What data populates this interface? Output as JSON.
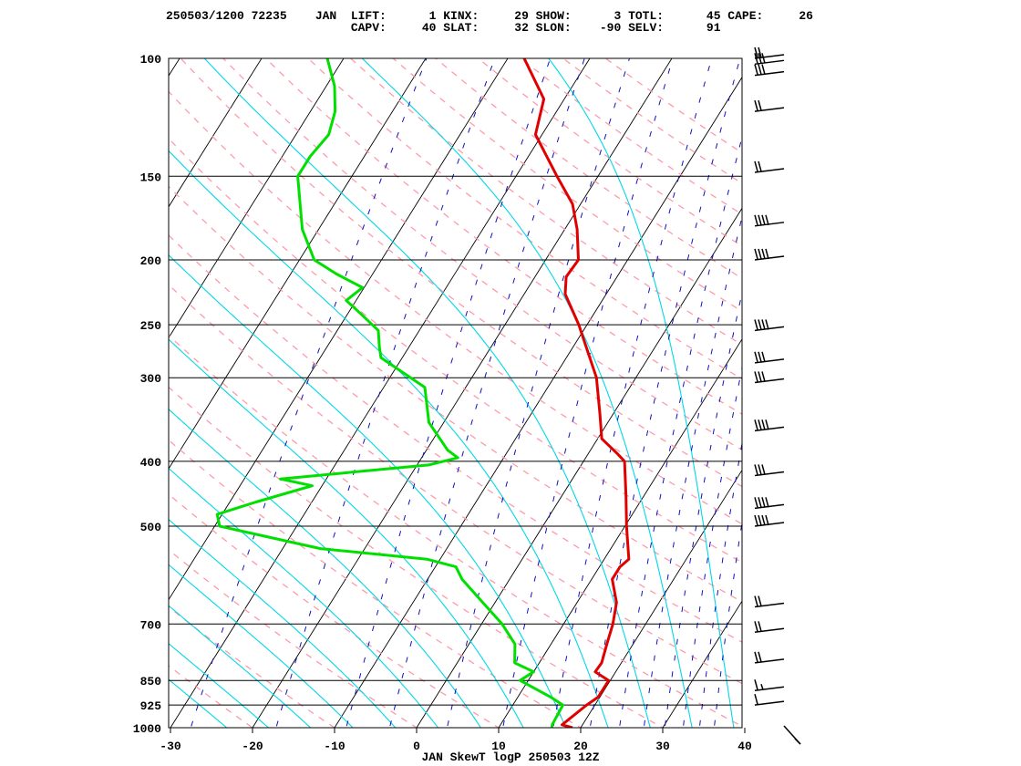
{
  "header": {
    "line1": "250503/1200 72235    JAN  LIFT:      1 KINX:     29 SHOW:      3 TOTL:      45 CAPE:     26",
    "line2": "                          CAPV:     40 SLAT:     32 SLON:    -90 SELV:      91"
  },
  "caption": "JAN SkewT logP 250503 12Z",
  "colors": {
    "temperature": "#e00000",
    "dewpoint": "#00e000",
    "isotherm": "#000000",
    "dry_adiabat": "#ff9aaa",
    "moist_adiabat": "#00d8e8",
    "mixing_ratio": "#1010c0",
    "isobar": "#000000"
  },
  "chart_data": {
    "type": "skewt-logp",
    "station": "JAN",
    "x_ticks": [
      -30,
      -20,
      -10,
      0,
      10,
      20,
      30,
      40
    ],
    "xlim": [
      -30,
      40
    ],
    "p_ticks": [
      100,
      150,
      200,
      250,
      300,
      400,
      500,
      700,
      850,
      925,
      1000
    ],
    "p_range": [
      1000,
      100
    ],
    "temperature": [
      [
        1000,
        19.0
      ],
      [
        990,
        17.5
      ],
      [
        925,
        19.0
      ],
      [
        900,
        19.8
      ],
      [
        850,
        19.8
      ],
      [
        825,
        17.5
      ],
      [
        800,
        17.6
      ],
      [
        750,
        16.8
      ],
      [
        700,
        16.0
      ],
      [
        650,
        14.8
      ],
      [
        600,
        12.5
      ],
      [
        575,
        12.5
      ],
      [
        560,
        13.0
      ],
      [
        500,
        10.2
      ],
      [
        450,
        7.8
      ],
      [
        400,
        5.0
      ],
      [
        390,
        3.6
      ],
      [
        370,
        0.5
      ],
      [
        340,
        -1.6
      ],
      [
        300,
        -4.8
      ],
      [
        250,
        -11.0
      ],
      [
        225,
        -15.0
      ],
      [
        212,
        -16.2
      ],
      [
        200,
        -16.0
      ],
      [
        180,
        -18.5
      ],
      [
        165,
        -21.0
      ],
      [
        150,
        -25.0
      ],
      [
        130,
        -30.8
      ],
      [
        115,
        -32.5
      ],
      [
        100,
        -38.0
      ],
      [
        95,
        -36.5
      ]
    ],
    "dewpoint": [
      [
        1000,
        16.5
      ],
      [
        990,
        16.3
      ],
      [
        925,
        16.1
      ],
      [
        900,
        14.0
      ],
      [
        850,
        9.0
      ],
      [
        825,
        10.0
      ],
      [
        800,
        7.0
      ],
      [
        750,
        5.6
      ],
      [
        700,
        2.5
      ],
      [
        650,
        -1.5
      ],
      [
        600,
        -5.8
      ],
      [
        575,
        -7.5
      ],
      [
        560,
        -11.6
      ],
      [
        540,
        -25.4
      ],
      [
        500,
        -39.4
      ],
      [
        480,
        -40.6
      ],
      [
        460,
        -36.8
      ],
      [
        450,
        -34.6
      ],
      [
        435,
        -31.2
      ],
      [
        425,
        -35.6
      ],
      [
        405,
        -18.6
      ],
      [
        395,
        -15.6
      ],
      [
        385,
        -17.4
      ],
      [
        350,
        -21.8
      ],
      [
        310,
        -25.0
      ],
      [
        280,
        -32.6
      ],
      [
        270,
        -33.6
      ],
      [
        255,
        -35.0
      ],
      [
        240,
        -38.6
      ],
      [
        230,
        -41.2
      ],
      [
        220,
        -40.2
      ],
      [
        210,
        -44.4
      ],
      [
        200,
        -48.2
      ],
      [
        180,
        -52.0
      ],
      [
        150,
        -56.6
      ],
      [
        140,
        -56.6
      ],
      [
        130,
        -56.0
      ],
      [
        120,
        -57.0
      ],
      [
        110,
        -59.0
      ],
      [
        100,
        -62.0
      ]
    ],
    "winds": [
      {
        "p": 1000,
        "type": "light"
      },
      {
        "p": 925,
        "barbs": "1 full"
      },
      {
        "p": 880,
        "barbs": "1 full, 1 half"
      },
      {
        "p": 800,
        "barbs": "2 full"
      },
      {
        "p": 720,
        "barbs": "2 full"
      },
      {
        "p": 660,
        "barbs": "2 full"
      },
      {
        "p": 500,
        "barbs": "4 full"
      },
      {
        "p": 470,
        "barbs": "4 full"
      },
      {
        "p": 420,
        "barbs": "3 full"
      },
      {
        "p": 360,
        "barbs": "4 full"
      },
      {
        "p": 305,
        "barbs": "3 full"
      },
      {
        "p": 285,
        "barbs": "3 full"
      },
      {
        "p": 255,
        "barbs": "4 full"
      },
      {
        "p": 200,
        "barbs": "4 full"
      },
      {
        "p": 178,
        "barbs": "4 full"
      },
      {
        "p": 148,
        "barbs": "2 full"
      },
      {
        "p": 120,
        "barbs": "2 full"
      },
      {
        "p": 106,
        "barbs": "3 full"
      },
      {
        "p": 102,
        "barbs": "3 full"
      },
      {
        "p": 100,
        "barbs": "2 full"
      }
    ]
  }
}
